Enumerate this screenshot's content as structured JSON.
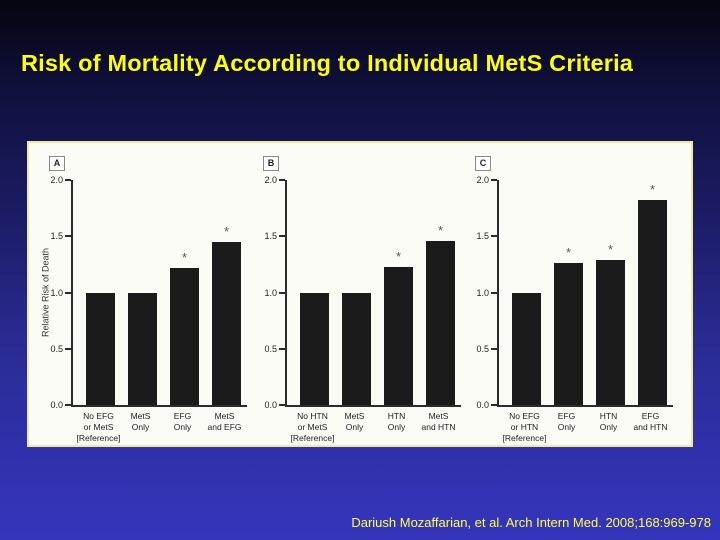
{
  "slide": {
    "title": "Risk of Mortality According to Individual MetS Criteria",
    "citation": "Dariush Mozaffarian, et al. Arch Intern Med. 2008;168:969-978"
  },
  "colors": {
    "title": "#ffff00",
    "citation": "#ffff4c",
    "background_top": "#050510",
    "background_bottom": "#3535bd",
    "panel_bg": "#fcfcf6",
    "panel_border": "#eeeb9c",
    "bar": "#1b1b1b"
  },
  "chart_data": [
    {
      "type": "bar",
      "panel": "A",
      "ylabel": "Relative Risk of Death",
      "ylim": [
        0,
        2.0
      ],
      "yticks": [
        "0.0",
        "0.5",
        "1.0",
        "1.5",
        "2.0"
      ],
      "categories": [
        "No EFG\nor MetS\n[Reference]",
        "MetS\nOnly",
        "EFG\nOnly",
        "MetS\nand EFG"
      ],
      "values": [
        1.0,
        1.0,
        1.22,
        1.45
      ],
      "significant": [
        false,
        false,
        true,
        true
      ],
      "sig_marker": "*",
      "grid": false,
      "legend": "none"
    },
    {
      "type": "bar",
      "panel": "B",
      "ylabel": "",
      "ylim": [
        0,
        2.0
      ],
      "yticks": [
        "0.0",
        "0.5",
        "1.0",
        "1.5",
        "2.0"
      ],
      "categories": [
        "No HTN\nor MetS\n[Reference]",
        "MetS\nOnly",
        "HTN\nOnly",
        "MetS\nand HTN"
      ],
      "values": [
        1.0,
        1.0,
        1.23,
        1.46
      ],
      "significant": [
        false,
        false,
        true,
        true
      ],
      "sig_marker": "*",
      "grid": false,
      "legend": "none"
    },
    {
      "type": "bar",
      "panel": "C",
      "ylabel": "",
      "ylim": [
        0,
        2.0
      ],
      "yticks": [
        "0.0",
        "0.5",
        "1.0",
        "1.5",
        "2.0"
      ],
      "categories": [
        "No EFG\nor HTN\n[Reference]",
        "EFG\nOnly",
        "HTN\nOnly",
        "EFG\nand HTN"
      ],
      "values": [
        1.0,
        1.26,
        1.29,
        1.82
      ],
      "significant": [
        false,
        true,
        true,
        true
      ],
      "sig_marker": "*",
      "grid": false,
      "legend": "none"
    }
  ]
}
